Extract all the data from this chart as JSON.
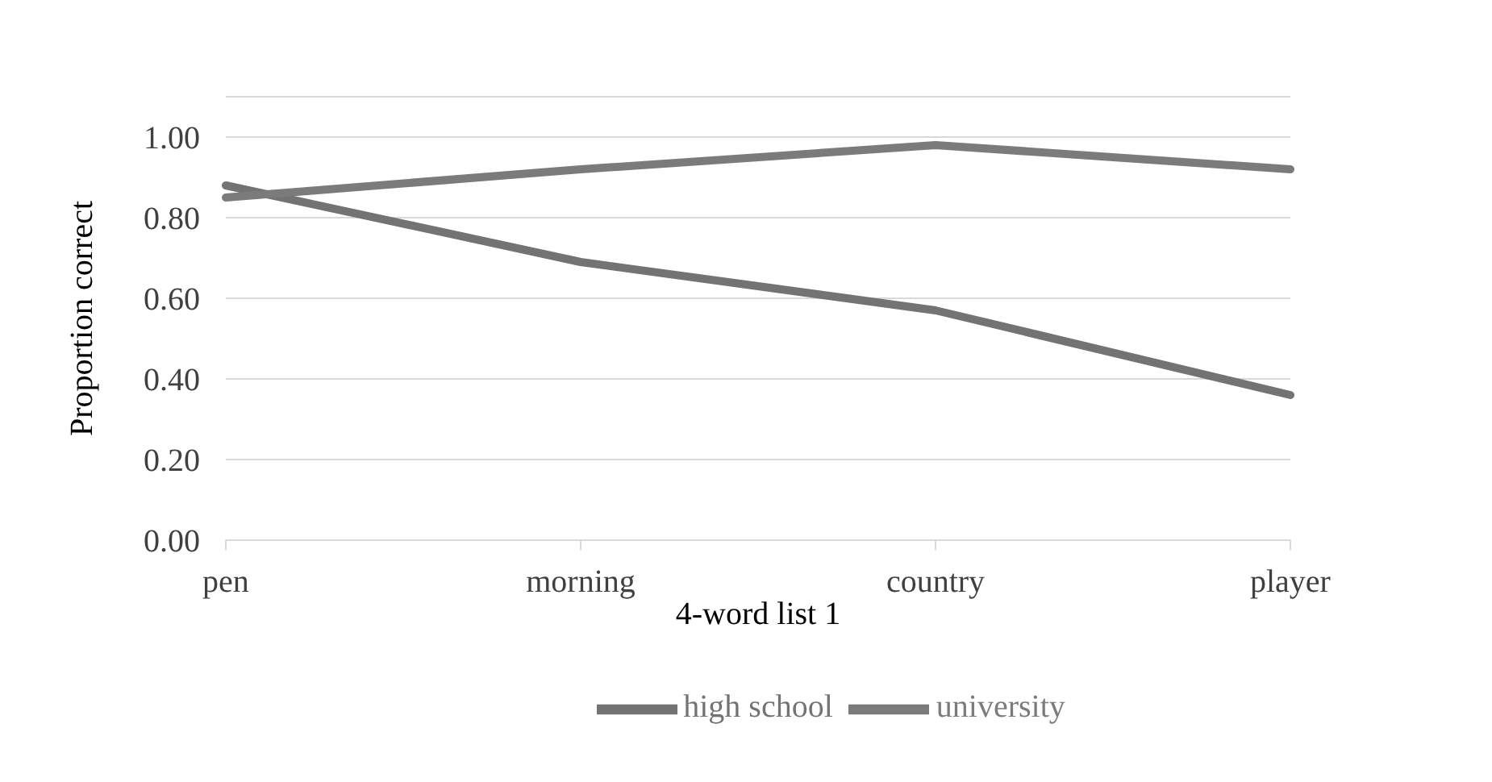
{
  "chart_data": {
    "type": "line",
    "xlabel": "4-word list 1",
    "ylabel": "Proportion correct",
    "categories": [
      "pen",
      "morning",
      "country",
      "player"
    ],
    "series": [
      {
        "name": "high school",
        "color": "#737373",
        "values": [
          0.88,
          0.69,
          0.57,
          0.36
        ]
      },
      {
        "name": "university",
        "color": "#7b7b7b",
        "values": [
          0.85,
          0.92,
          0.98,
          0.92
        ]
      }
    ],
    "ylim": [
      0,
      1.1
    ],
    "yticks": [
      {
        "value": 0,
        "label": "0.00"
      },
      {
        "value": 0.2,
        "label": "0.20"
      },
      {
        "value": 0.4,
        "label": "0.40"
      },
      {
        "value": 0.6,
        "label": "0.60"
      },
      {
        "value": 0.8,
        "label": "0.80"
      },
      {
        "value": 1,
        "label": "1.00"
      }
    ],
    "grid": "y",
    "legend": "bottom",
    "marker": "none",
    "line_style": "solid"
  }
}
